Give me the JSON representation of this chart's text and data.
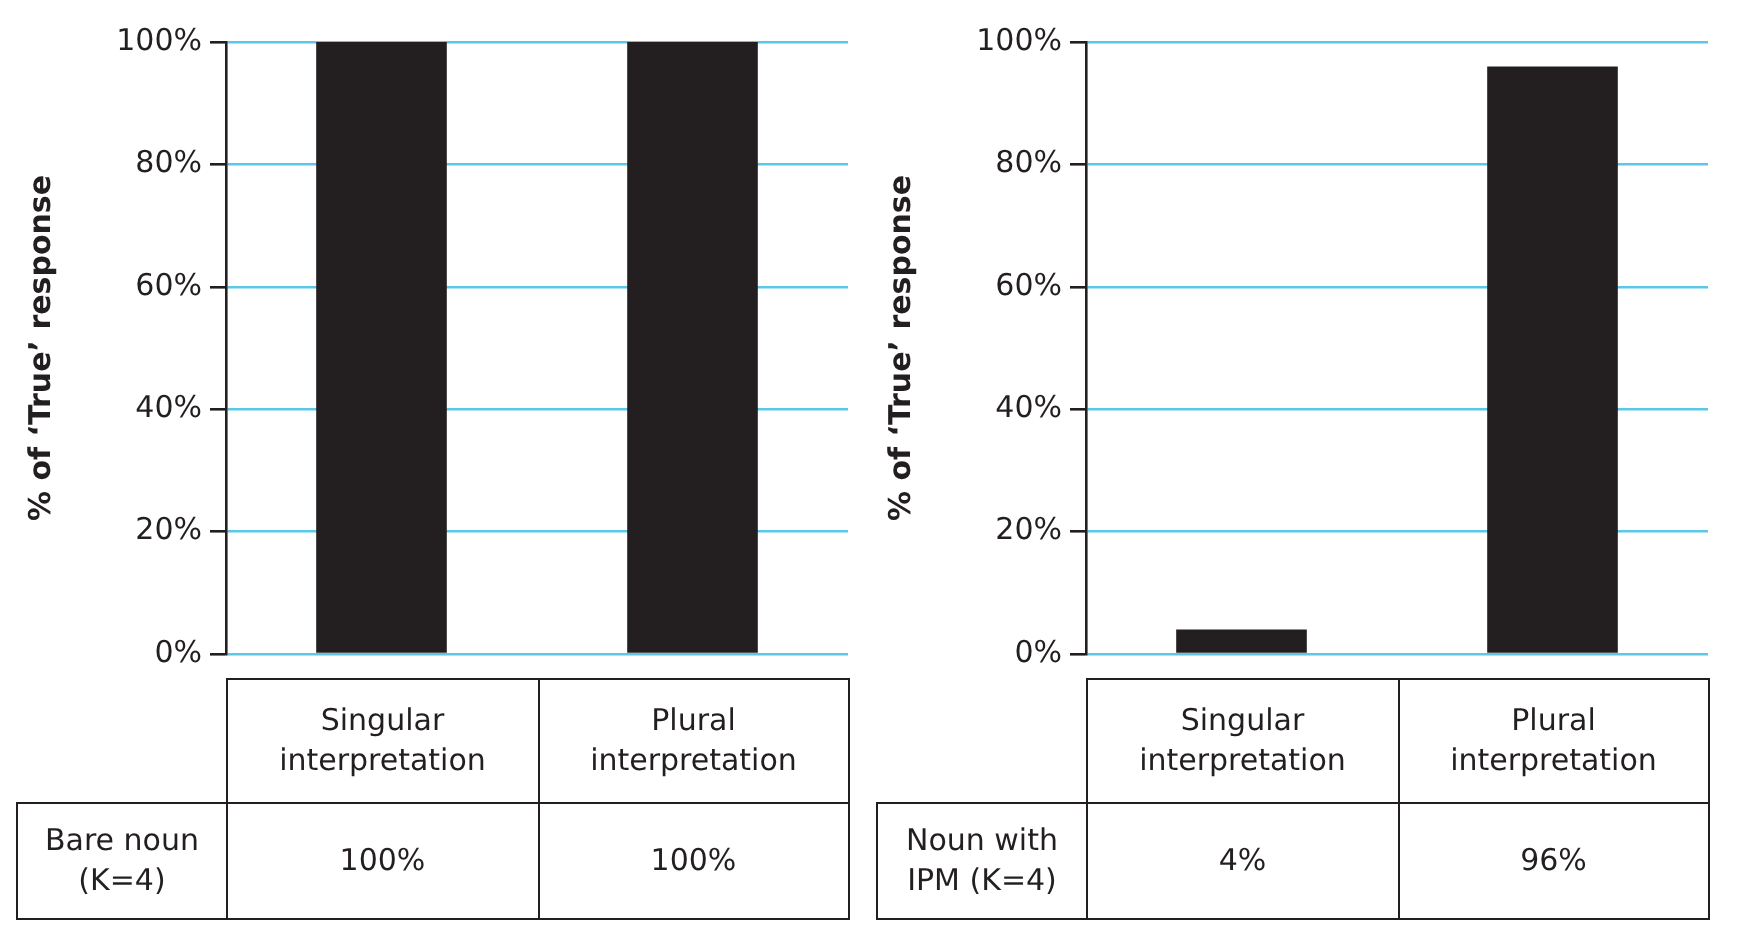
{
  "chart_data": [
    {
      "type": "bar",
      "ylabel": "% of ‘True’ response",
      "categories": [
        "Singular interpretation",
        "Plural interpretation"
      ],
      "series": [
        {
          "name": "Bare noun (K=4)",
          "color": "#231f20",
          "values": [
            100,
            100
          ],
          "value_labels": [
            "100%",
            "100%"
          ]
        }
      ],
      "ylim": [
        0,
        100
      ],
      "yticks": [
        {
          "value": 0,
          "label": "0%"
        },
        {
          "value": 20,
          "label": "20%"
        },
        {
          "value": 40,
          "label": "40%"
        },
        {
          "value": 60,
          "label": "60%"
        },
        {
          "value": 80,
          "label": "80%"
        },
        {
          "value": 100,
          "label": "100%"
        }
      ],
      "grid": "y"
    },
    {
      "type": "bar",
      "ylabel": "% of ‘True’ response",
      "categories": [
        "Singular interpretation",
        "Plural interpretation"
      ],
      "series": [
        {
          "name": "Noun with IPM (K=4)",
          "color": "#231f20",
          "values": [
            4,
            96
          ],
          "value_labels": [
            "4%",
            "96%"
          ]
        }
      ],
      "ylim": [
        0,
        100
      ],
      "yticks": [
        {
          "value": 0,
          "label": "0%"
        },
        {
          "value": 20,
          "label": "20%"
        },
        {
          "value": 40,
          "label": "40%"
        },
        {
          "value": 60,
          "label": "60%"
        },
        {
          "value": 80,
          "label": "80%"
        },
        {
          "value": 100,
          "label": "100%"
        }
      ],
      "grid": "y"
    }
  ]
}
